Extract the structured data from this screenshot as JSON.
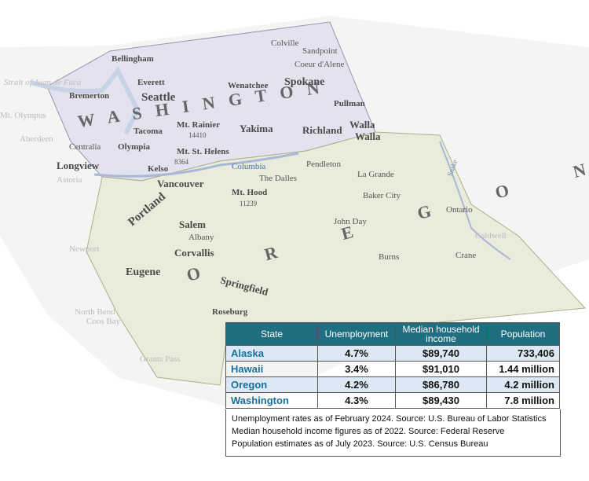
{
  "map": {
    "labels": [
      "Bellingham",
      "Everett",
      "Seattle",
      "Bremerton",
      "Olympia",
      "Tacoma",
      "Mt. Rainier",
      "14410",
      "Yakima",
      "Wenatchee",
      "Spokane",
      "Colville",
      "Sandpoint",
      "Coeur d'Alene",
      "Pullman",
      "Richland",
      "Walla",
      "Walla",
      "Centralia",
      "Aberdeen",
      "Longview",
      "Kelso",
      "Mt. St. Helens",
      "8364",
      "Vancouver",
      "Astoria",
      "Columbia",
      "Portland",
      "Mt. Hood",
      "11239",
      "The Dalles",
      "Pendleton",
      "La Grande",
      "Baker City",
      "Salem",
      "Albany",
      "Corvallis",
      "Eugene",
      "Springfield",
      "Newport",
      "Roseburg",
      "Coos Bay",
      "North Bend",
      "Grants Pass",
      "John Day",
      "Burns",
      "Ontario",
      "Caldwell",
      "Crane",
      "Snake",
      "W A S H I N G T O N",
      "O R E G O N",
      "Mt. Olympus",
      "Strait of Juan de Fuca"
    ]
  },
  "table": {
    "headers": [
      "State",
      "Unemployment",
      "Median household income",
      "Population"
    ],
    "rows": [
      [
        "Alaska",
        "4.7%",
        "$89,740",
        "733,406"
      ],
      [
        "Hawaii",
        "3.4%",
        "$91,010",
        "1.44 million"
      ],
      [
        "Oregon",
        "4.2%",
        "$86,780",
        "4.2 million"
      ],
      [
        "Washington",
        "4.3%",
        "$89,430",
        "7.8 million"
      ]
    ],
    "notes": [
      "Unemployment rates as of February 2024. Source: U.S. Bureau of Labor Statistics",
      "Median household income figures as of 2022. Source: Federal Reserve",
      "Population estimates as of July 2023. Source: U.S. Census Bureau"
    ]
  }
}
